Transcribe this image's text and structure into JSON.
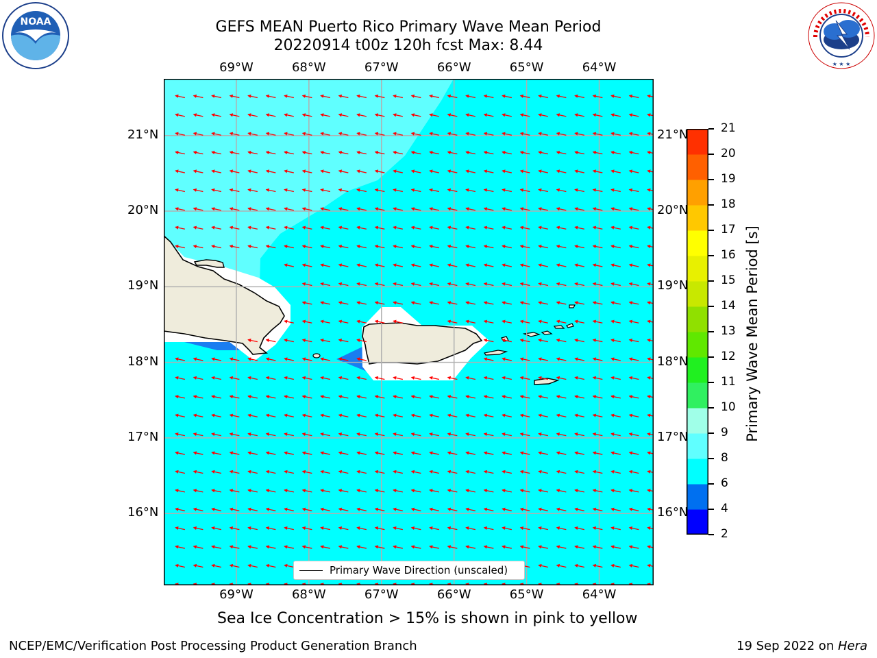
{
  "title": {
    "line1": "GEFS MEAN Puerto Rico Primary Wave Mean Period",
    "line2": "20220914 t00z 120h fcst   Max: 8.44"
  },
  "axes": {
    "lon_ticks": [
      "69°W",
      "68°W",
      "67°W",
      "66°W",
      "65°W",
      "64°W"
    ],
    "lat_ticks": [
      "21°N",
      "20°N",
      "19°N",
      "18°N",
      "17°N",
      "16°N"
    ],
    "lon_range": [
      -70.0,
      -63.25
    ],
    "lat_range": [
      15.05,
      21.75
    ]
  },
  "colorbar": {
    "label": "Primary Wave Mean Period [s]",
    "ticks": [
      "2",
      "4",
      "6",
      "8",
      "9",
      "10",
      "11",
      "12",
      "13",
      "14",
      "15",
      "16",
      "17",
      "18",
      "19",
      "20",
      "21"
    ],
    "colors": [
      "#0000ff",
      "#0070f0",
      "#00ffff",
      "#60ffff",
      "#a0ffe8",
      "#30f060",
      "#20f020",
      "#60e800",
      "#90e000",
      "#c8e800",
      "#e8f000",
      "#ffff00",
      "#ffc800",
      "#ffa000",
      "#ff6000",
      "#ff3000",
      "#ff0000"
    ]
  },
  "legend": {
    "label": "Primary Wave Direction (unscaled)"
  },
  "map_colors": {
    "ocean_main": "#00ffff",
    "ocean_light": "#60ffff",
    "ocean_dark": "#1a7df0",
    "land": "#efecdc",
    "arrow": "#ff0000"
  },
  "footer": {
    "note": "Sea Ice Concentration > 15% is shown in pink to yellow",
    "left": "NCEP/EMC/Verification Post Processing Product Generation Branch",
    "right_date": "19 Sep 2022 on ",
    "right_machine": "Hera"
  },
  "logos": {
    "noaa": "NOAA",
    "nws": "NATIONAL WEATHER SERVICE"
  }
}
